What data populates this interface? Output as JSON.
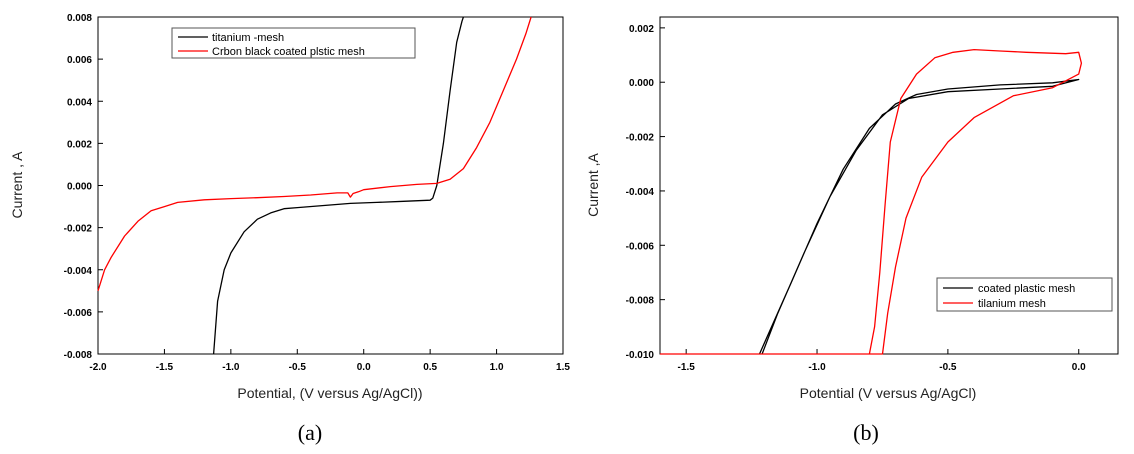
{
  "chart_data": [
    {
      "type": "line",
      "caption": "(a)",
      "xlabel": "Potential, (V versus Ag/AgCl))",
      "ylabel": "Current , A",
      "xlim": [
        -2.0,
        1.5
      ],
      "ylim": [
        -0.008,
        0.008
      ],
      "x_ticks": [
        "-2.0",
        "-1.5",
        "-1.0",
        "-0.5",
        "0.0",
        "0.5",
        "1.0",
        "1.5"
      ],
      "y_ticks": [
        "0.008",
        "0.006",
        "0.004",
        "0.002",
        "0.000",
        "-0.002",
        "-0.004",
        "-0.006",
        "-0.008"
      ],
      "legend_placement": "top-center",
      "series": [
        {
          "name": "titanium -mesh",
          "color": "#000000",
          "points": [
            [
              -1.13,
              -0.008
            ],
            [
              -1.1,
              -0.0055
            ],
            [
              -1.05,
              -0.004
            ],
            [
              -1.0,
              -0.0032
            ],
            [
              -0.9,
              -0.0022
            ],
            [
              -0.8,
              -0.0016
            ],
            [
              -0.7,
              -0.0013
            ],
            [
              -0.6,
              -0.0011
            ],
            [
              -0.5,
              -0.00105
            ],
            [
              -0.3,
              -0.00095
            ],
            [
              -0.1,
              -0.00085
            ],
            [
              0.1,
              -0.0008
            ],
            [
              0.3,
              -0.00075
            ],
            [
              0.5,
              -0.0007
            ],
            [
              0.52,
              -0.0006
            ],
            [
              0.55,
              0.0
            ],
            [
              0.6,
              0.002
            ],
            [
              0.65,
              0.0045
            ],
            [
              0.7,
              0.0068
            ],
            [
              0.74,
              0.0078
            ],
            [
              0.75,
              0.008
            ]
          ]
        },
        {
          "name": "Crbon black coated plstic mesh",
          "color": "#ff0000",
          "points": [
            [
              -2.0,
              -0.005
            ],
            [
              -1.95,
              -0.004
            ],
            [
              -1.9,
              -0.0034
            ],
            [
              -1.8,
              -0.0024
            ],
            [
              -1.7,
              -0.0017
            ],
            [
              -1.6,
              -0.0012
            ],
            [
              -1.5,
              -0.001
            ],
            [
              -1.4,
              -0.0008
            ],
            [
              -1.2,
              -0.00068
            ],
            [
              -1.0,
              -0.00062
            ],
            [
              -0.8,
              -0.00058
            ],
            [
              -0.6,
              -0.00052
            ],
            [
              -0.4,
              -0.00045
            ],
            [
              -0.2,
              -0.00035
            ],
            [
              -0.12,
              -0.00035
            ],
            [
              -0.1,
              -0.00055
            ],
            [
              -0.08,
              -0.00038
            ],
            [
              -0.04,
              -0.0003
            ],
            [
              0.0,
              -0.0002
            ],
            [
              0.2,
              -5e-05
            ],
            [
              0.4,
              5e-05
            ],
            [
              0.55,
              0.0001
            ],
            [
              0.65,
              0.0003
            ],
            [
              0.75,
              0.0008
            ],
            [
              0.85,
              0.0018
            ],
            [
              0.95,
              0.003
            ],
            [
              1.05,
              0.0045
            ],
            [
              1.15,
              0.006
            ],
            [
              1.22,
              0.0072
            ],
            [
              1.26,
              0.008
            ]
          ]
        }
      ]
    },
    {
      "type": "line",
      "caption": "(b)",
      "xlabel": "Potential (V versus Ag/AgCl)",
      "ylabel": "Current ,A",
      "xlim": [
        -1.6,
        0.15
      ],
      "ylim": [
        -0.01,
        0.0024
      ],
      "x_ticks": [
        "-1.5",
        "-1.0",
        "-0.5",
        "0.0"
      ],
      "y_ticks": [
        "0.002",
        "0.000",
        "-0.002",
        "-0.004",
        "-0.006",
        "-0.008",
        "-0.010"
      ],
      "legend_placement": "bottom-right",
      "series": [
        {
          "name": "coated plastic  mesh",
          "color": "#000000",
          "points": [
            [
              -1.22,
              -0.01
            ],
            [
              -1.1,
              -0.0074
            ],
            [
              -1.0,
              -0.0052
            ],
            [
              -0.9,
              -0.0032
            ],
            [
              -0.8,
              -0.0017
            ],
            [
              -0.7,
              -0.0008
            ],
            [
              -0.62,
              -0.00045
            ],
            [
              -0.5,
              -0.00025
            ],
            [
              -0.3,
              -0.0001
            ],
            [
              -0.1,
              -2e-05
            ],
            [
              0.0,
              0.0001
            ],
            [
              -0.1,
              -0.00015
            ],
            [
              -0.3,
              -0.00025
            ],
            [
              -0.5,
              -0.00035
            ],
            [
              -0.65,
              -0.0006
            ],
            [
              -0.75,
              -0.0012
            ],
            [
              -0.85,
              -0.0025
            ],
            [
              -0.95,
              -0.0042
            ],
            [
              -1.05,
              -0.0063
            ],
            [
              -1.15,
              -0.0085
            ],
            [
              -1.21,
              -0.01
            ]
          ]
        },
        {
          "name": "tilanium mesh",
          "color": "#ff0000",
          "points": [
            [
              -1.6,
              -0.01
            ],
            [
              -1.4,
              -0.01
            ],
            [
              -1.2,
              -0.01
            ],
            [
              -1.0,
              -0.01
            ],
            [
              -0.8,
              -0.01
            ],
            [
              -0.78,
              -0.009
            ],
            [
              -0.76,
              -0.007
            ],
            [
              -0.74,
              -0.0045
            ],
            [
              -0.72,
              -0.0022
            ],
            [
              -0.68,
              -0.0006
            ],
            [
              -0.62,
              0.0003
            ],
            [
              -0.55,
              0.0009
            ],
            [
              -0.48,
              0.0011
            ],
            [
              -0.4,
              0.0012
            ],
            [
              -0.3,
              0.00115
            ],
            [
              -0.2,
              0.0011
            ],
            [
              -0.05,
              0.00105
            ],
            [
              0.0,
              0.0011
            ],
            [
              0.01,
              0.0007
            ],
            [
              0.0,
              0.0003
            ],
            [
              -0.1,
              -0.0002
            ],
            [
              -0.25,
              -0.0005
            ],
            [
              -0.4,
              -0.0013
            ],
            [
              -0.5,
              -0.0022
            ],
            [
              -0.6,
              -0.0035
            ],
            [
              -0.66,
              -0.005
            ],
            [
              -0.7,
              -0.0068
            ],
            [
              -0.73,
              -0.0085
            ],
            [
              -0.75,
              -0.01
            ],
            [
              -0.8,
              -0.01
            ],
            [
              -1.0,
              -0.01
            ],
            [
              -1.6,
              -0.01
            ]
          ]
        }
      ]
    }
  ]
}
